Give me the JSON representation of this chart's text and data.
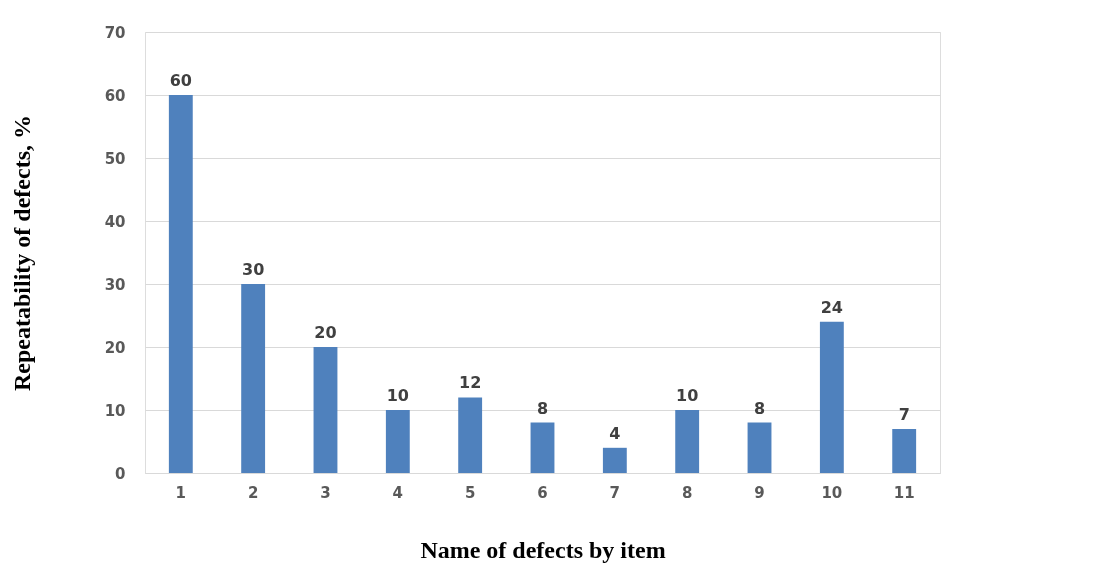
{
  "chart_data": {
    "type": "bar",
    "xlabel": "Name of defects by item",
    "ylabel": "Repeatability of defects, %",
    "categories": [
      "1",
      "2",
      "3",
      "4",
      "5",
      "6",
      "7",
      "8",
      "9",
      "10",
      "11"
    ],
    "values": [
      60,
      30,
      20,
      10,
      12,
      8,
      4,
      10,
      8,
      24,
      7
    ],
    "color": "#4f81bd",
    "ylim": [
      0,
      70
    ],
    "yticks": [
      0,
      10,
      20,
      30,
      40,
      50,
      60,
      70
    ],
    "grid": "y",
    "data_labels": true
  }
}
